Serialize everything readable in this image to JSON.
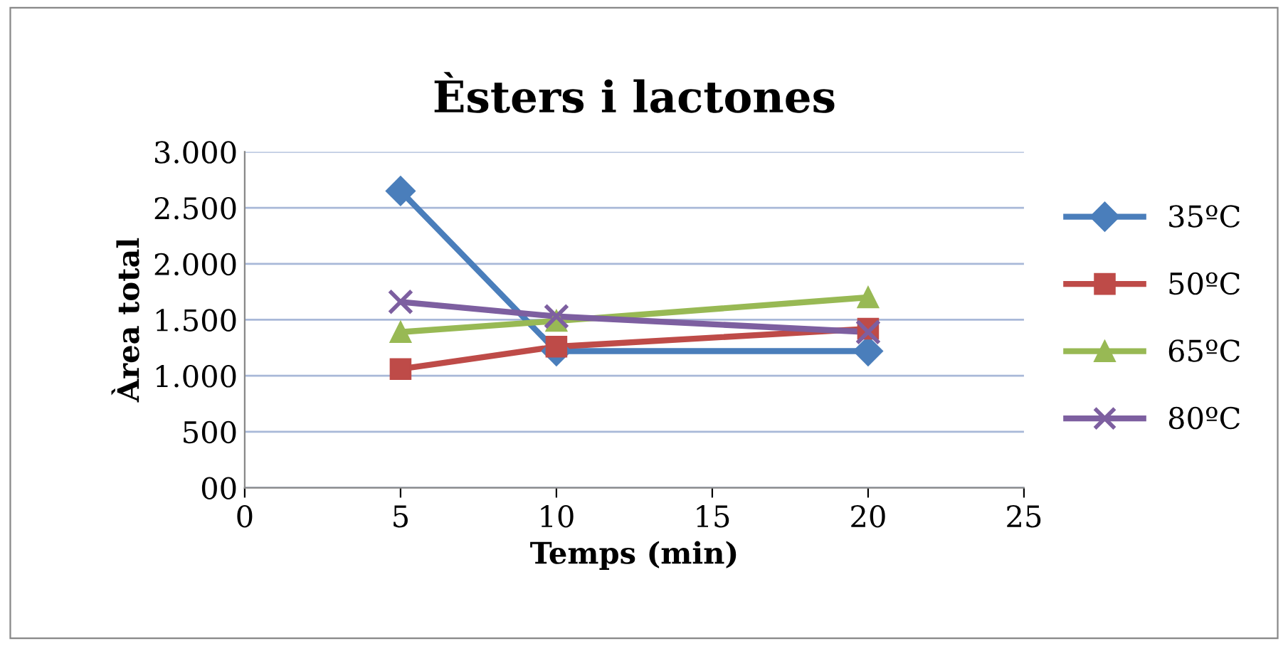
{
  "chart_data": {
    "type": "line",
    "title": "Èsters i lactones",
    "xlabel": "Temps (min)",
    "ylabel": "Àrea total",
    "x": [
      5,
      10,
      20
    ],
    "series": [
      {
        "name": "35ºC",
        "color": "#4a7ebb",
        "marker": "diamond",
        "values": [
          2650,
          1220,
          1220
        ]
      },
      {
        "name": "50ºC",
        "color": "#be4b48",
        "marker": "square",
        "values": [
          1060,
          1260,
          1420
        ]
      },
      {
        "name": "65ºC",
        "color": "#98b954",
        "marker": "triangle",
        "values": [
          1390,
          1490,
          1700
        ]
      },
      {
        "name": "80ºC",
        "color": "#7d5fa0",
        "marker": "cross",
        "values": [
          1660,
          1530,
          1390
        ]
      }
    ],
    "xlim": [
      0,
      25
    ],
    "xticks": [
      0,
      5,
      10,
      15,
      20,
      25
    ],
    "ylim": [
      0,
      3000
    ],
    "yticks": [
      {
        "value": 0,
        "label": "00"
      },
      500,
      {
        "value": 1000,
        "label": "1.000"
      },
      {
        "value": 1500,
        "label": "1.500"
      },
      {
        "value": 2000,
        "label": "2.000"
      },
      {
        "value": 2500,
        "label": "2.500"
      },
      {
        "value": 3000,
        "label": "3.000"
      }
    ],
    "grid": "y",
    "legend": "right",
    "line_style": "solid"
  }
}
